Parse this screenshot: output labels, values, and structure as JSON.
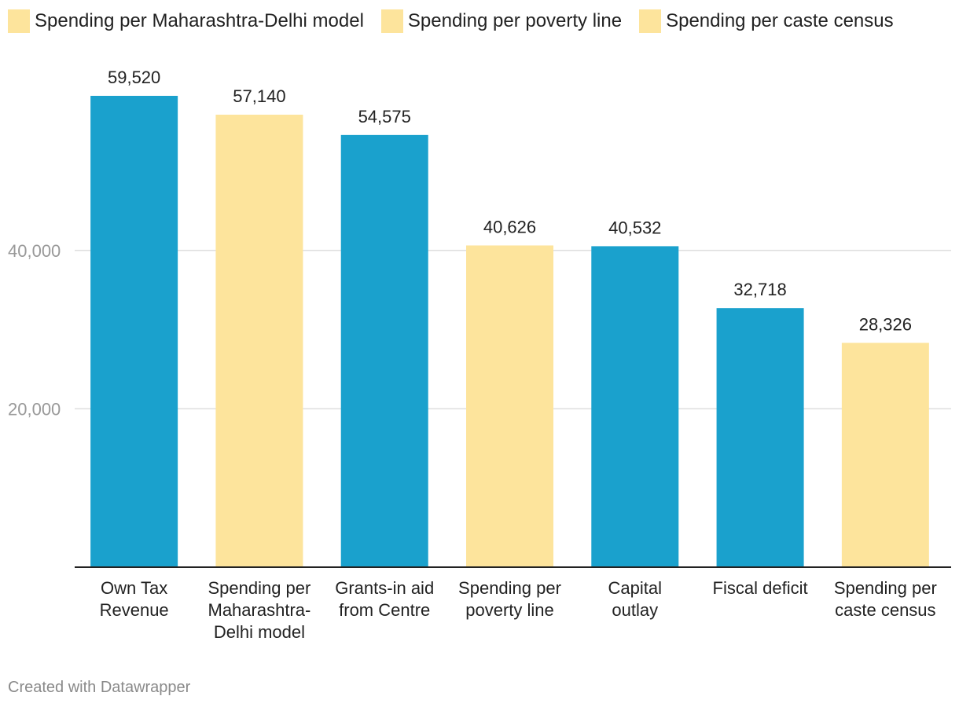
{
  "legend": [
    {
      "label": "Spending per Maharashtra-Delhi model",
      "color": "#fde49c"
    },
    {
      "label": "Spending per poverty line",
      "color": "#fde49c"
    },
    {
      "label": "Spending per caste census",
      "color": "#fde49c"
    }
  ],
  "footer": {
    "credit": "Created with Datawrapper"
  },
  "chart_data": {
    "type": "bar",
    "title": "",
    "xlabel": "",
    "ylabel": "",
    "ylim": [
      0,
      60000
    ],
    "yticks": [
      20000,
      40000
    ],
    "ytick_labels": [
      "20,000",
      "40,000"
    ],
    "grid": true,
    "categories": [
      [
        "Own Tax",
        "Revenue"
      ],
      [
        "Spending per",
        "Maharashtra-",
        "Delhi model"
      ],
      [
        "Grants-in aid",
        "from Centre"
      ],
      [
        "Spending per",
        "poverty line"
      ],
      [
        "Capital",
        "outlay"
      ],
      [
        "Fiscal deficit"
      ],
      [
        "Spending per",
        "caste census"
      ]
    ],
    "values": [
      59520,
      57140,
      54575,
      40626,
      40532,
      32718,
      28326
    ],
    "value_labels": [
      "59,520",
      "57,140",
      "54,575",
      "40,626",
      "40,532",
      "32,718",
      "28,326"
    ],
    "colors": [
      "#1aa1cd",
      "#fde49c",
      "#1aa1cd",
      "#fde49c",
      "#1aa1cd",
      "#1aa1cd",
      "#fde49c"
    ]
  }
}
